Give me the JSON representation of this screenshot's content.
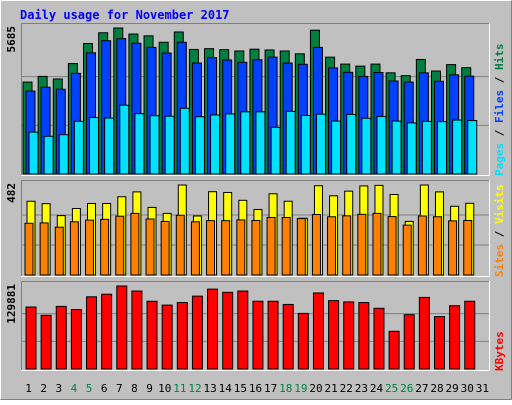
{
  "chart_data": [
    {
      "type": "bar",
      "title": "Daily usage for November 2017",
      "ylabel_max": "5685",
      "categories": [
        "1",
        "2",
        "3",
        "4",
        "5",
        "6",
        "7",
        "8",
        "9",
        "10",
        "11",
        "12",
        "13",
        "14",
        "15",
        "16",
        "17",
        "18",
        "19",
        "20",
        "21",
        "22",
        "23",
        "24",
        "25",
        "26",
        "27",
        "28",
        "29",
        "30",
        "31"
      ],
      "weekend_days": [
        "4",
        "5",
        "11",
        "12",
        "18",
        "19",
        "25",
        "26"
      ],
      "legend": [
        "Pages",
        "Files",
        "Hits"
      ],
      "series": [
        {
          "name": "Hits",
          "color": "#008040",
          "values": [
            3580,
            3800,
            3700,
            4300,
            5080,
            5500,
            5685,
            5450,
            5380,
            5130,
            5530,
            4850,
            4880,
            4840,
            4790,
            4860,
            4830,
            4790,
            4680,
            5600,
            4550,
            4280,
            4200,
            4280,
            3940,
            3830,
            4460,
            4010,
            4260,
            4140,
            0
          ]
        },
        {
          "name": "Files",
          "color": "#0040ff",
          "values": [
            3230,
            3380,
            3300,
            3920,
            4720,
            5190,
            5270,
            5090,
            4930,
            4710,
            5130,
            4320,
            4530,
            4440,
            4350,
            4450,
            4550,
            4320,
            4270,
            4930,
            4130,
            3960,
            3800,
            3950,
            3620,
            3580,
            3940,
            3610,
            3860,
            3810,
            0
          ]
        },
        {
          "name": "Pages",
          "color": "#00e0ff",
          "values": [
            1630,
            1470,
            1530,
            2050,
            2200,
            2180,
            2680,
            2350,
            2270,
            2250,
            2560,
            2230,
            2300,
            2340,
            2420,
            2420,
            1820,
            2440,
            2280,
            2330,
            2060,
            2320,
            2170,
            2240,
            2060,
            1990,
            2050,
            2040,
            2100,
            2080,
            0
          ]
        }
      ]
    },
    {
      "type": "bar",
      "ylabel_max": "482",
      "legend": [
        "Sites",
        "Visits"
      ],
      "series": [
        {
          "name": "Visits",
          "color": "#ffff00",
          "values": [
            395,
            382,
            318,
            356,
            383,
            383,
            419,
            445,
            362,
            330,
            482,
            316,
            446,
            442,
            400,
            351,
            435,
            395,
            304,
            478,
            424,
            449,
            477,
            480,
            431,
            287,
            482,
            445,
            368,
            384,
            0
          ]
        },
        {
          "name": "Sites",
          "color": "#ff8000",
          "values": [
            277,
            279,
            256,
            285,
            294,
            298,
            315,
            330,
            300,
            287,
            320,
            285,
            291,
            291,
            295,
            292,
            308,
            308,
            302,
            324,
            312,
            317,
            325,
            330,
            313,
            267,
            316,
            312,
            290,
            292,
            0
          ]
        }
      ]
    },
    {
      "type": "bar",
      "ylabel_max": "129881",
      "legend": [
        "KBytes"
      ],
      "series": [
        {
          "name": "KBytes",
          "color": "#ff0000",
          "values": [
            97000,
            84000,
            98000,
            93000,
            113000,
            117000,
            129881,
            122000,
            106000,
            100000,
            104000,
            114000,
            125000,
            120000,
            122000,
            106000,
            106000,
            101000,
            87000,
            119000,
            107000,
            105000,
            104000,
            95000,
            59000,
            85000,
            112000,
            82000,
            99000,
            106000,
            0
          ]
        }
      ]
    }
  ]
}
